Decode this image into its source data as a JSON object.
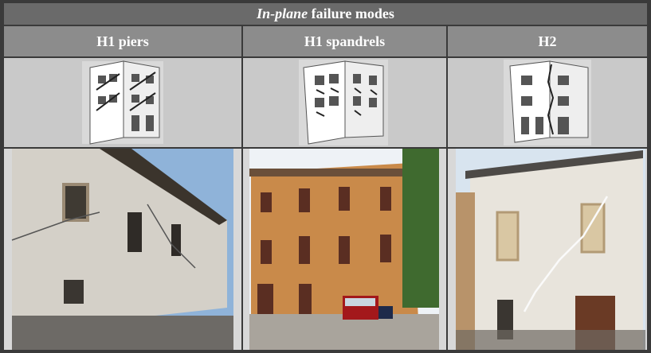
{
  "table": {
    "title": {
      "italic": "In-plane",
      "rest": "failure modes"
    },
    "columns": [
      "H1 piers",
      "H1 spandrels",
      "H2"
    ]
  }
}
